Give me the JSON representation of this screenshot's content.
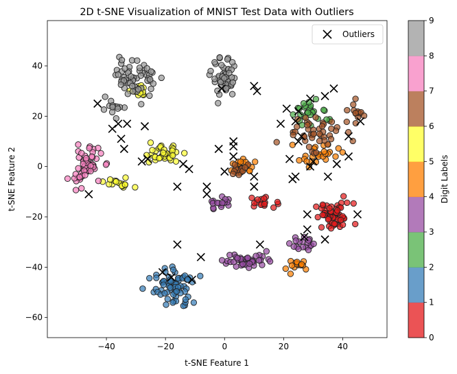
{
  "chart_data": {
    "type": "scatter",
    "title": "2D t-SNE Visualization of MNIST Test Data with Outliers",
    "xlabel": "t-SNE Feature 1",
    "ylabel": "t-SNE Feature 2",
    "xlim": [
      -60,
      55
    ],
    "ylim": [
      -68,
      58
    ],
    "xticks": [
      -40,
      -20,
      0,
      20,
      40
    ],
    "yticks": [
      -60,
      -40,
      -20,
      0,
      20,
      40
    ],
    "grid": false,
    "legend": {
      "placement": "top-right",
      "entries": [
        "Outliers"
      ]
    },
    "colorbar": {
      "label": "Digit Labels",
      "ticks": [
        0,
        1,
        2,
        3,
        4,
        5,
        6,
        7,
        8,
        9
      ],
      "colors": [
        "#e41a1c",
        "#377eb8",
        "#4daf4a",
        "#984ea3",
        "#ff7f00",
        "#ffff33",
        "#a65628",
        "#f781bf",
        "#999999"
      ]
    },
    "clusters": [
      {
        "label": 0,
        "color": "#e41a1c",
        "center": [
          37,
          -20
        ],
        "spread": [
          6,
          5
        ],
        "count": 55
      },
      {
        "label": 0,
        "color": "#e41a1c",
        "center": [
          13,
          -14
        ],
        "spread": [
          4,
          2
        ],
        "count": 16
      },
      {
        "label": 1,
        "color": "#377eb8",
        "center": [
          -17,
          -48
        ],
        "spread": [
          6,
          7
        ],
        "count": 70
      },
      {
        "label": 2,
        "color": "#4daf4a",
        "center": [
          30,
          22
        ],
        "spread": [
          7,
          5
        ],
        "count": 28
      },
      {
        "label": 3,
        "color": "#984ea3",
        "center": [
          8,
          -37
        ],
        "spread": [
          8,
          3
        ],
        "count": 40
      },
      {
        "label": 3,
        "color": "#984ea3",
        "center": [
          -2,
          -15
        ],
        "spread": [
          3,
          3
        ],
        "count": 16
      },
      {
        "label": 3,
        "color": "#984ea3",
        "center": [
          25,
          -30
        ],
        "spread": [
          4,
          3
        ],
        "count": 18
      },
      {
        "label": 4,
        "color": "#ff7f00",
        "center": [
          25,
          -40
        ],
        "spread": [
          4,
          3
        ],
        "count": 15
      },
      {
        "label": 4,
        "color": "#ff7f00",
        "center": [
          32,
          5
        ],
        "spread": [
          6,
          4
        ],
        "count": 25
      },
      {
        "label": 4,
        "color": "#ff7f00",
        "center": [
          6,
          0
        ],
        "spread": [
          4,
          3
        ],
        "count": 20
      },
      {
        "label": 5,
        "color": "#ffff33",
        "center": [
          -21,
          5
        ],
        "spread": [
          6,
          3
        ],
        "count": 40
      },
      {
        "label": 5,
        "color": "#ffff33",
        "center": [
          -36,
          -7
        ],
        "spread": [
          4,
          2
        ],
        "count": 18
      },
      {
        "label": 5,
        "color": "#ffff33",
        "center": [
          -28,
          30
        ],
        "spread": [
          3,
          3
        ],
        "count": 14
      },
      {
        "label": 6,
        "color": "#a65628",
        "center": [
          30,
          14
        ],
        "spread": [
          9,
          6
        ],
        "count": 45
      },
      {
        "label": 6,
        "color": "#a65628",
        "center": [
          4,
          -2
        ],
        "spread": [
          4,
          3
        ],
        "count": 14
      },
      {
        "label": 6,
        "color": "#a65628",
        "center": [
          45,
          22
        ],
        "spread": [
          3,
          3
        ],
        "count": 12
      },
      {
        "label": 7,
        "color": "#f781bf",
        "center": [
          -47,
          0
        ],
        "spread": [
          5,
          7
        ],
        "count": 60
      },
      {
        "label": 8,
        "color": "#999999",
        "center": [
          -30,
          35
        ],
        "spread": [
          6,
          7
        ],
        "count": 60
      },
      {
        "label": 8,
        "color": "#999999",
        "center": [
          0,
          35
        ],
        "spread": [
          4,
          7
        ],
        "count": 50
      },
      {
        "label": 8,
        "color": "#999999",
        "center": [
          -38,
          23
        ],
        "spread": [
          3,
          3
        ],
        "count": 12
      }
    ],
    "outliers": [
      [
        -43,
        25
      ],
      [
        -36,
        17
      ],
      [
        -38,
        15
      ],
      [
        -33,
        17
      ],
      [
        -27,
        16
      ],
      [
        -35,
        11
      ],
      [
        -34,
        7
      ],
      [
        -28,
        2
      ],
      [
        -26,
        3
      ],
      [
        -14,
        1
      ],
      [
        -12,
        -1
      ],
      [
        -46,
        -11
      ],
      [
        -16,
        -31
      ],
      [
        -21,
        -42
      ],
      [
        -18,
        -44
      ],
      [
        -11,
        -45
      ],
      [
        -8,
        -36
      ],
      [
        -16,
        -8
      ],
      [
        -6,
        -8
      ],
      [
        -6,
        -11
      ],
      [
        -2,
        7
      ],
      [
        -1,
        31
      ],
      [
        3,
        8
      ],
      [
        3,
        10
      ],
      [
        0,
        -2
      ],
      [
        3,
        4
      ],
      [
        10,
        -4
      ],
      [
        10,
        -8
      ],
      [
        10,
        32
      ],
      [
        11,
        30
      ],
      [
        12,
        -31
      ],
      [
        28,
        -19
      ],
      [
        28,
        -25
      ],
      [
        27,
        -28
      ],
      [
        34,
        -29
      ],
      [
        45,
        -19
      ],
      [
        35,
        -4
      ],
      [
        38,
        1
      ],
      [
        30,
        2
      ],
      [
        29,
        0
      ],
      [
        23,
        -5
      ],
      [
        24,
        -4
      ],
      [
        22,
        3
      ],
      [
        24,
        18
      ],
      [
        25,
        22
      ],
      [
        26,
        12
      ],
      [
        34,
        28
      ],
      [
        37,
        31
      ],
      [
        42,
        12
      ],
      [
        46,
        18
      ],
      [
        42,
        4
      ],
      [
        29,
        27
      ],
      [
        25,
        10
      ],
      [
        21,
        23
      ],
      [
        19,
        17
      ]
    ]
  }
}
